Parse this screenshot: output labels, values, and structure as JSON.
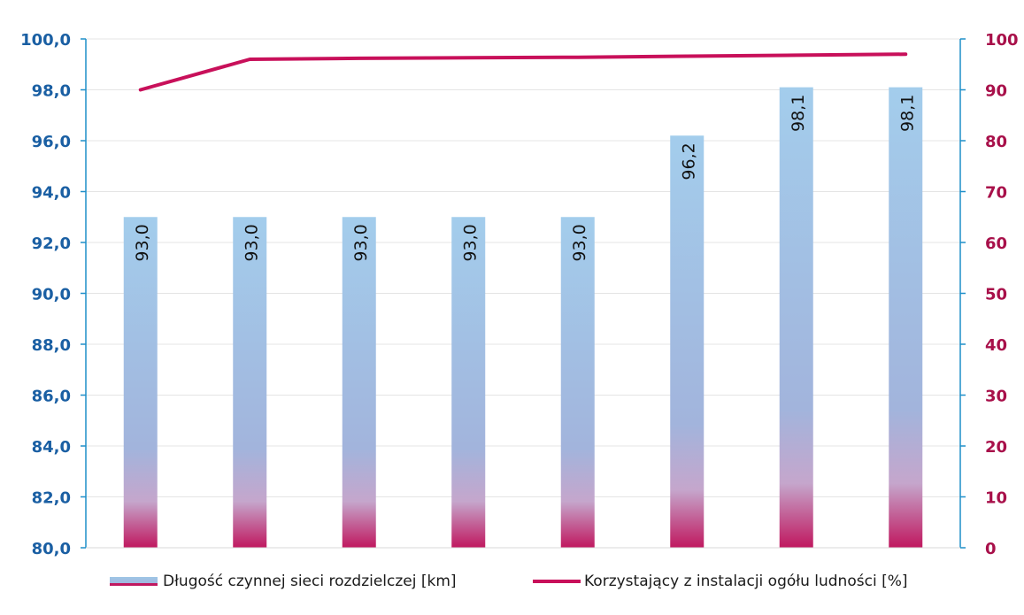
{
  "chart_data": {
    "type": "bar",
    "categories": [
      "",
      "",
      "",
      "",
      "",
      "",
      "",
      ""
    ],
    "series": [
      {
        "name": "Długość czynnej sieci rozdzielczej [km]",
        "type": "bar",
        "axis": "left",
        "values": [
          93.0,
          93.0,
          93.0,
          93.0,
          93.0,
          96.2,
          98.1,
          98.1
        ],
        "labels": [
          "93,0",
          "93,0",
          "93,0",
          "93,0",
          "93,0",
          "96,2",
          "98,1",
          "98,1"
        ]
      },
      {
        "name": "Korzystający z instalacji ogółu ludności [%]",
        "type": "line",
        "axis": "right",
        "values": [
          90.0,
          96.0,
          96.2,
          96.3,
          96.4,
          96.6,
          96.8,
          97.0
        ]
      }
    ],
    "y_left": {
      "ylim": [
        80,
        100
      ],
      "ticks": [
        "80,0",
        "82,0",
        "84,0",
        "86,0",
        "88,0",
        "90,0",
        "92,0",
        "94,0",
        "96,0",
        "98,0",
        "100,0"
      ]
    },
    "y_right": {
      "ylim": [
        0,
        100
      ],
      "ticks": [
        "0",
        "10",
        "20",
        "30",
        "40",
        "50",
        "60",
        "70",
        "80",
        "90",
        "100"
      ]
    },
    "grid": true,
    "legend": "bottom",
    "colors": {
      "bar_top": "#a3cdec",
      "bar_mid": "#a2b4dc",
      "bar_bottom": "#c0185f",
      "line": "#c8105a",
      "left_axis": "#1f8fc9",
      "left_labels": "#1a5fa3",
      "right_labels": "#a8104a",
      "grid": "#e4e4e4"
    }
  }
}
